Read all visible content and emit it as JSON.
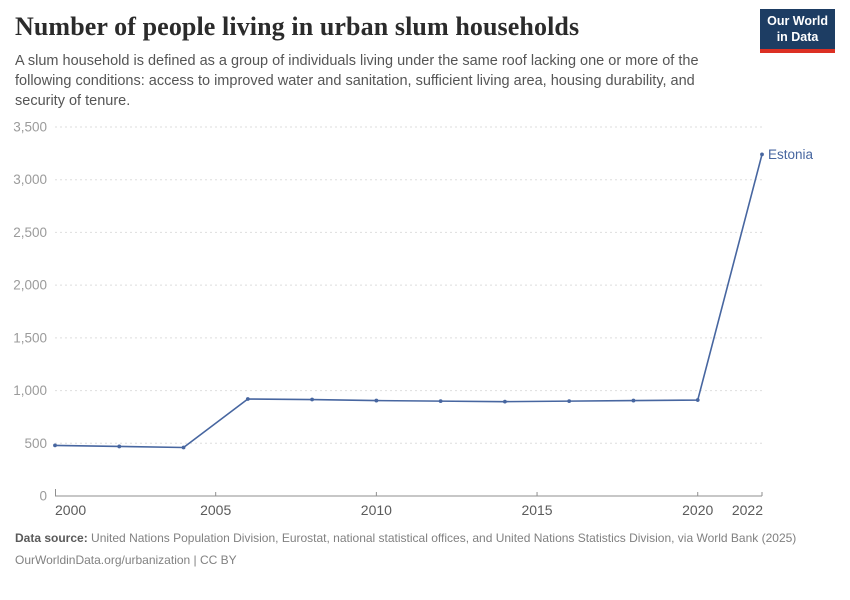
{
  "header": {
    "title": "Number of people living in urban slum households",
    "subtitle": "A slum household is defined as a group of individuals living under the same roof lacking one or more of the following conditions: access to improved water and sanitation, sufficient living area, housing durability, and security of tenure."
  },
  "logo": {
    "line1": "Our World",
    "line2": "in Data"
  },
  "chart_data": {
    "type": "line",
    "title": "Number of people living in urban slum households",
    "x": [
      2000,
      2002,
      2004,
      2006,
      2008,
      2010,
      2012,
      2014,
      2016,
      2018,
      2020,
      2022
    ],
    "series": [
      {
        "name": "Estonia",
        "color": "#4766a0",
        "values": [
          480,
          470,
          460,
          920,
          915,
          905,
          900,
          895,
          900,
          905,
          910,
          3240
        ]
      }
    ],
    "x_ticks": [
      2000,
      2005,
      2010,
      2015,
      2020,
      2022
    ],
    "y_ticks": [
      0,
      500,
      1000,
      1500,
      2000,
      2500,
      3000,
      3500
    ],
    "xlim": [
      2000,
      2022
    ],
    "ylim": [
      0,
      3500
    ],
    "xlabel": "",
    "ylabel": "",
    "grid": "horizontal-dashed",
    "legend": "end-of-line-label",
    "end_label": "Estonia"
  },
  "footer": {
    "source_label": "Data source:",
    "source_text": "United Nations Population Division, Eurostat, national statistical offices, and United Nations Statistics Division, via World Bank (2025)",
    "attribution": "OurWorldinData.org/urbanization | CC BY"
  },
  "colors": {
    "accent": "#4766a0",
    "logo_bg": "#1d3d63",
    "logo_stripe": "#dc3023",
    "gridline": "#dedede",
    "axis": "#8f8f8f",
    "y_tick_text": "#9b9b9b",
    "x_tick_text": "#5b5b5b"
  }
}
